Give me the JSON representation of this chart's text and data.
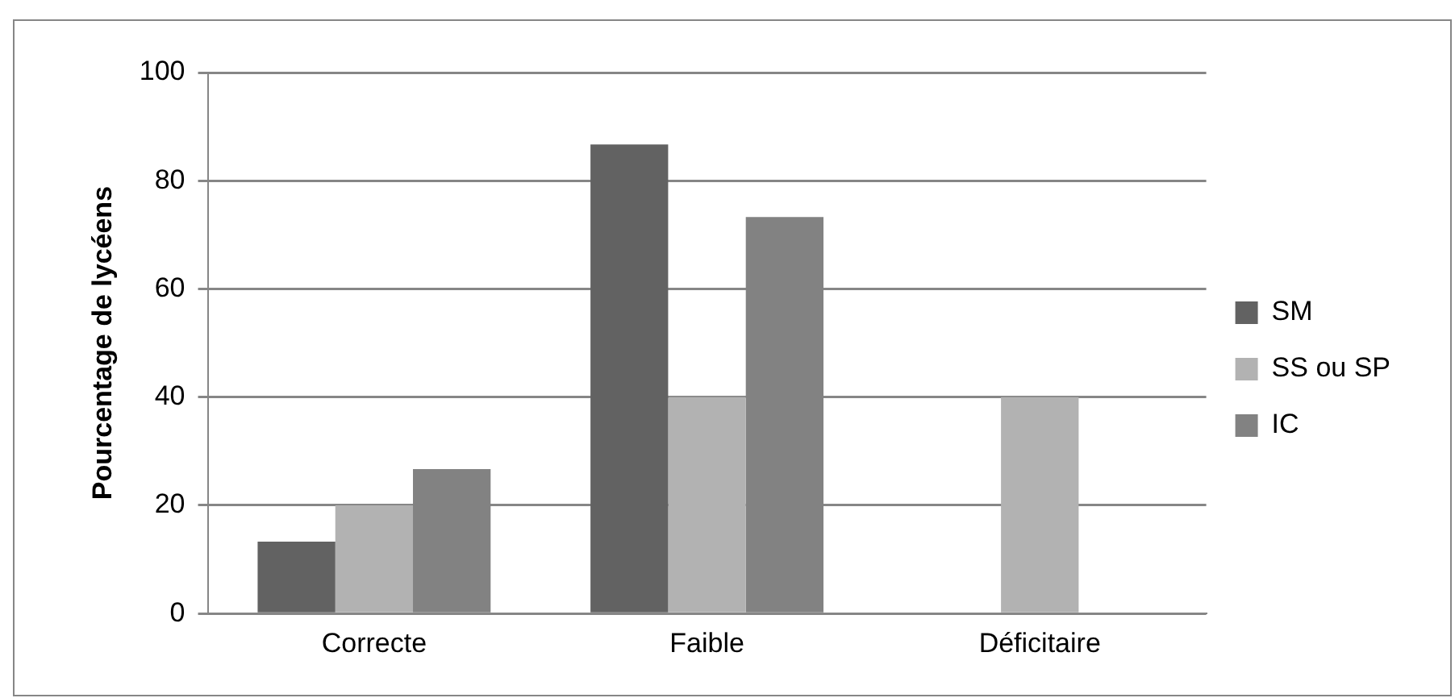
{
  "chart_data": {
    "type": "bar",
    "ylabel": "Pourcentage de lycéens",
    "categories": [
      "Correcte",
      "Faible",
      "Déficitaire"
    ],
    "series": [
      {
        "name": "SM",
        "color": "#626262",
        "values": [
          13.3,
          86.7,
          0
        ]
      },
      {
        "name": "SS ou SP",
        "color": "#b2b2b2",
        "values": [
          20,
          40,
          40
        ]
      },
      {
        "name": "IC",
        "color": "#828282",
        "values": [
          26.7,
          73.3,
          0
        ]
      }
    ],
    "ylim": [
      0,
      100
    ],
    "yticks": [
      0,
      20,
      40,
      60,
      80,
      100
    ],
    "grid": "y",
    "legend": "right"
  }
}
